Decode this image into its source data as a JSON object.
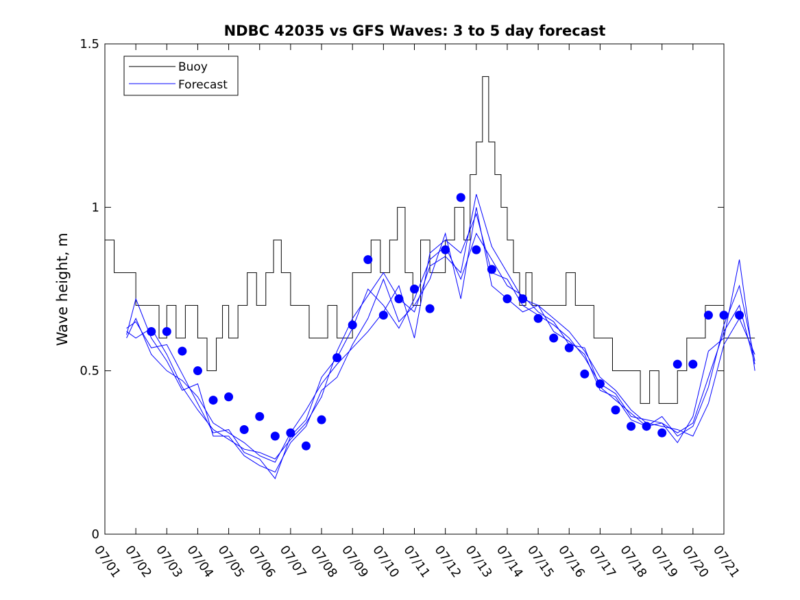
{
  "chart_data": {
    "type": "line",
    "title": "NDBC 42035 vs GFS Waves: 3 to 5 day forecast",
    "xlabel": "",
    "ylabel": "Wave height, m",
    "xlim": [
      "07/01",
      "07/21"
    ],
    "ylim": [
      0,
      1.5
    ],
    "y_ticks": [
      0,
      0.5,
      1,
      1.5
    ],
    "y_tick_labels": [
      "0",
      "0.5",
      "1",
      "1.5"
    ],
    "x_tick_labels": [
      "07/01",
      "07/02",
      "07/03",
      "07/04",
      "07/05",
      "07/06",
      "07/07",
      "07/08",
      "07/09",
      "07/10",
      "07/11",
      "07/12",
      "07/13",
      "07/14",
      "07/15",
      "07/16",
      "07/17",
      "07/18",
      "07/19",
      "07/20",
      "07/21"
    ],
    "legend": {
      "placement": "top-left",
      "entries": [
        "Buoy",
        "Forecast"
      ]
    },
    "colors": {
      "buoy": "#000000",
      "forecast": "#0000ff",
      "markers": "#0000ff"
    },
    "series": [
      {
        "name": "Buoy",
        "x": [
          0.0,
          0.3,
          0.7,
          1.0,
          1.5,
          1.75,
          2.0,
          2.3,
          2.6,
          3.0,
          3.3,
          3.6,
          3.8,
          4.0,
          4.3,
          4.6,
          4.9,
          5.2,
          5.45,
          5.7,
          6.0,
          6.3,
          6.6,
          6.9,
          7.2,
          7.5,
          7.8,
          8.0,
          8.3,
          8.6,
          8.9,
          9.2,
          9.45,
          9.7,
          9.95,
          10.2,
          10.5,
          10.8,
          11.0,
          11.3,
          11.6,
          11.8,
          12.0,
          12.2,
          12.4,
          12.6,
          12.8,
          13.0,
          13.2,
          13.4,
          13.6,
          13.8,
          14.0,
          14.3,
          14.6,
          14.9,
          15.2,
          15.5,
          15.8,
          16.1,
          16.4,
          16.7,
          17.0,
          17.3,
          17.6,
          17.9,
          18.2,
          18.5,
          18.8,
          19.1,
          19.4,
          19.7,
          20.0,
          20.3,
          20.6,
          21.0
        ],
        "y": [
          0.9,
          0.8,
          0.8,
          0.7,
          0.7,
          0.6,
          0.7,
          0.6,
          0.7,
          0.6,
          0.5,
          0.6,
          0.7,
          0.6,
          0.7,
          0.8,
          0.7,
          0.8,
          0.9,
          0.8,
          0.7,
          0.7,
          0.6,
          0.6,
          0.7,
          0.6,
          0.6,
          0.8,
          0.8,
          0.9,
          0.8,
          0.9,
          1.0,
          0.8,
          0.7,
          0.9,
          0.8,
          0.8,
          0.9,
          1.0,
          0.9,
          1.1,
          1.2,
          1.4,
          1.2,
          1.1,
          1.0,
          0.9,
          0.8,
          0.7,
          0.8,
          0.7,
          0.7,
          0.7,
          0.7,
          0.8,
          0.7,
          0.7,
          0.6,
          0.6,
          0.5,
          0.5,
          0.5,
          0.4,
          0.5,
          0.4,
          0.4,
          0.5,
          0.6,
          0.6,
          0.7,
          0.7,
          0.6,
          0.6,
          0.6,
          0.6
        ]
      },
      {
        "name": "Forecast",
        "x": [
          0.7,
          1.0,
          1.5,
          2.0,
          2.5,
          3.0,
          3.5,
          4.0,
          4.5,
          5.0,
          5.5,
          6.0,
          6.5,
          7.0,
          7.5,
          8.0,
          8.5,
          9.0,
          9.5,
          10.0,
          10.5,
          11.0,
          11.5,
          12.0,
          12.5,
          13.0,
          13.5,
          14.0,
          14.5,
          15.0,
          15.5,
          16.0,
          16.5,
          17.0,
          17.5,
          18.0,
          18.5,
          19.0,
          19.5,
          20.0,
          20.5,
          21.0
        ],
        "y": [
          0.62,
          0.6,
          0.63,
          0.55,
          0.45,
          0.38,
          0.32,
          0.29,
          0.26,
          0.25,
          0.23,
          0.29,
          0.34,
          0.42,
          0.56,
          0.66,
          0.73,
          0.8,
          0.72,
          0.68,
          0.82,
          0.85,
          0.8,
          1.04,
          0.88,
          0.8,
          0.72,
          0.7,
          0.66,
          0.62,
          0.56,
          0.48,
          0.44,
          0.38,
          0.34,
          0.33,
          0.32,
          0.3,
          0.4,
          0.58,
          0.66,
          0.55
        ]
      },
      {
        "name": "Forecast",
        "x": [
          0.7,
          1.0,
          1.5,
          2.0,
          2.5,
          3.0,
          3.5,
          4.0,
          4.5,
          5.0,
          5.5,
          6.0,
          6.5,
          7.0,
          7.5,
          8.0,
          8.5,
          9.0,
          9.5,
          10.0,
          10.5,
          11.0,
          11.5,
          12.0,
          12.5,
          13.0,
          13.5,
          14.0,
          14.5,
          15.0,
          15.5,
          16.0,
          16.5,
          17.0,
          17.5,
          18.0,
          18.5,
          19.0,
          19.5,
          20.0,
          20.5,
          21.0
        ],
        "y": [
          0.6,
          0.66,
          0.55,
          0.5,
          0.47,
          0.42,
          0.34,
          0.31,
          0.28,
          0.24,
          0.22,
          0.31,
          0.38,
          0.46,
          0.52,
          0.57,
          0.62,
          0.68,
          0.76,
          0.6,
          0.86,
          0.9,
          0.86,
          0.98,
          0.8,
          0.78,
          0.7,
          0.67,
          0.64,
          0.6,
          0.54,
          0.46,
          0.43,
          0.36,
          0.35,
          0.34,
          0.31,
          0.34,
          0.48,
          0.62,
          0.7,
          0.52
        ]
      },
      {
        "name": "Forecast",
        "x": [
          0.7,
          1.0,
          1.5,
          2.0,
          2.5,
          3.0,
          3.5,
          4.0,
          4.5,
          5.0,
          5.5,
          6.0,
          6.5,
          7.0,
          7.5,
          8.0,
          8.5,
          9.0,
          9.5,
          10.0,
          10.5,
          11.0,
          11.5,
          12.0,
          12.5,
          13.0,
          13.5,
          14.0,
          14.5,
          15.0,
          15.5,
          16.0,
          16.5,
          17.0,
          17.5,
          18.0,
          18.5,
          19.0,
          19.5,
          20.0,
          20.5,
          21.0
        ],
        "y": [
          0.61,
          0.72,
          0.6,
          0.53,
          0.44,
          0.46,
          0.3,
          0.3,
          0.24,
          0.21,
          0.19,
          0.28,
          0.33,
          0.44,
          0.48,
          0.58,
          0.66,
          0.78,
          0.65,
          0.7,
          0.78,
          0.92,
          0.72,
          1.0,
          0.76,
          0.72,
          0.68,
          0.7,
          0.62,
          0.59,
          0.55,
          0.44,
          0.42,
          0.35,
          0.33,
          0.34,
          0.28,
          0.36,
          0.56,
          0.6,
          0.84,
          0.5
        ]
      },
      {
        "name": "Forecast",
        "x": [
          0.7,
          1.0,
          1.5,
          2.0,
          2.5,
          3.0,
          3.5,
          4.0,
          4.5,
          5.0,
          5.5,
          6.0,
          6.5,
          7.0,
          7.5,
          8.0,
          8.5,
          9.0,
          9.5,
          10.0,
          10.5,
          11.0,
          11.5,
          12.0,
          12.5,
          13.0,
          13.5,
          14.0,
          14.5,
          15.0,
          15.5,
          16.0,
          16.5,
          17.0,
          17.5,
          18.0,
          18.5,
          19.0,
          19.5,
          20.0,
          20.5,
          21.0
        ],
        "y": [
          0.63,
          0.65,
          0.57,
          0.58,
          0.49,
          0.4,
          0.31,
          0.32,
          0.25,
          0.23,
          0.17,
          0.3,
          0.35,
          0.48,
          0.54,
          0.63,
          0.75,
          0.7,
          0.63,
          0.72,
          0.84,
          0.88,
          0.78,
          0.92,
          0.84,
          0.76,
          0.73,
          0.68,
          0.65,
          0.58,
          0.57,
          0.45,
          0.41,
          0.37,
          0.33,
          0.36,
          0.3,
          0.33,
          0.45,
          0.64,
          0.76,
          0.53
        ]
      },
      {
        "name": "Forecast markers",
        "x": [
          1.5,
          2.0,
          2.5,
          3.0,
          3.5,
          4.0,
          4.5,
          5.0,
          5.5,
          6.0,
          6.5,
          7.0,
          7.5,
          8.0,
          8.5,
          9.0,
          9.5,
          10.0,
          10.5,
          11.0,
          11.5,
          12.0,
          12.5,
          13.0,
          13.5,
          14.0,
          14.5,
          15.0,
          15.5,
          16.0,
          16.5,
          17.0,
          17.5,
          18.0,
          18.5,
          19.0,
          19.5,
          20.0,
          20.5
        ],
        "y": [
          0.62,
          0.62,
          0.56,
          0.5,
          0.41,
          0.42,
          0.32,
          0.36,
          0.3,
          0.31,
          0.27,
          0.35,
          0.54,
          0.64,
          0.84,
          0.67,
          0.72,
          0.75,
          0.69,
          0.87,
          1.03,
          0.87,
          0.81,
          0.72,
          0.72,
          0.66,
          0.6,
          0.57,
          0.49,
          0.46,
          0.38,
          0.33,
          0.33,
          0.31,
          0.52,
          0.52,
          0.67,
          0.67,
          0.67
        ]
      }
    ]
  }
}
